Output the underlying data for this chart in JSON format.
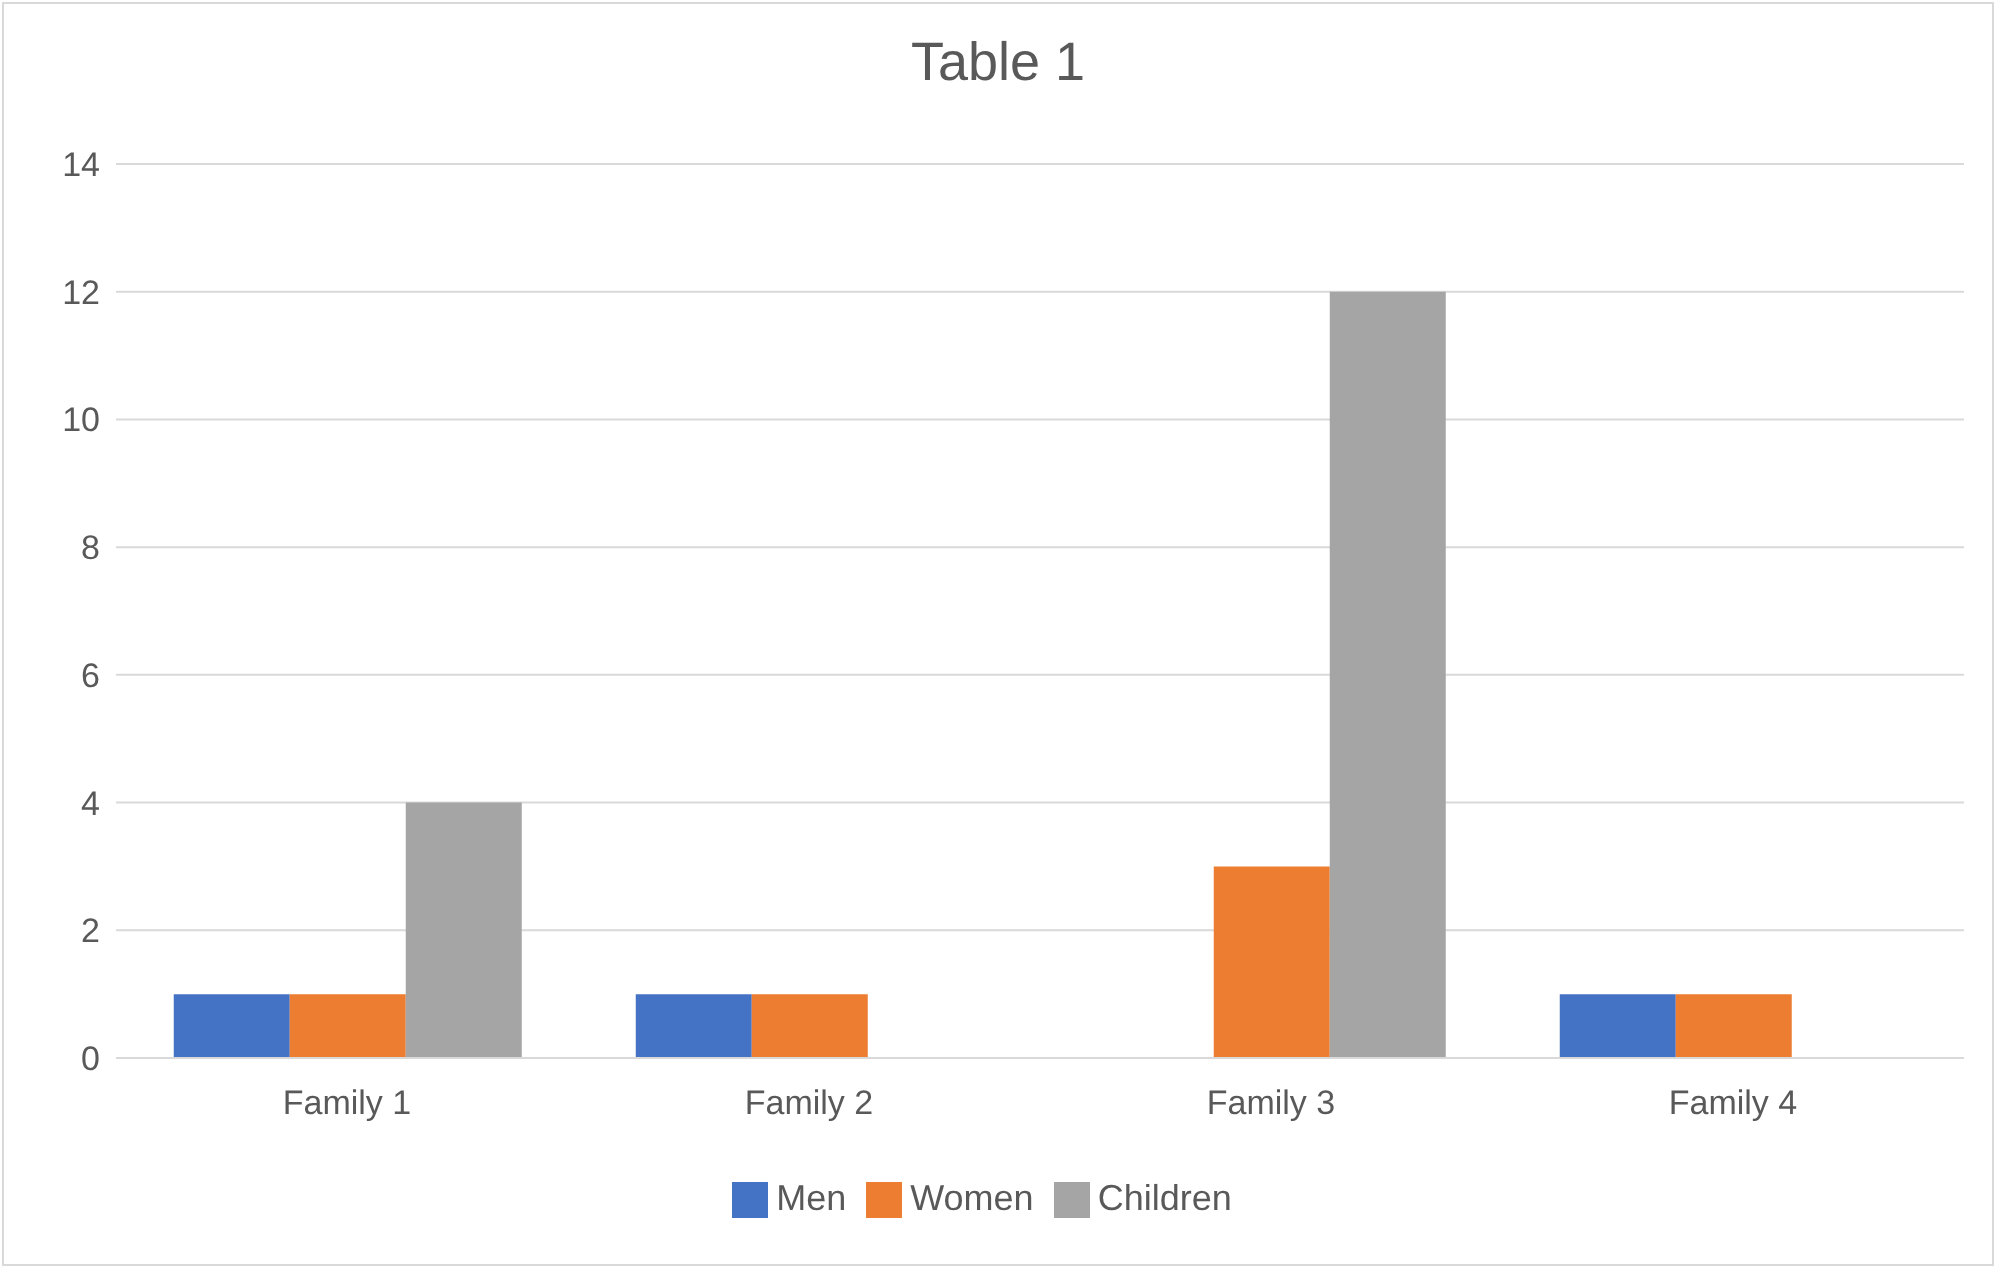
{
  "chart_data": {
    "type": "bar",
    "title": "Table 1",
    "categories": [
      "Family 1",
      "Family 2",
      "Family 3",
      "Family 4"
    ],
    "series": [
      {
        "name": "Men",
        "color": "#4472c4",
        "values": [
          1,
          1,
          0,
          1
        ]
      },
      {
        "name": "Women",
        "color": "#ed7d31",
        "values": [
          1,
          1,
          3,
          1
        ]
      },
      {
        "name": "Children",
        "color": "#a5a5a5",
        "values": [
          4,
          0,
          12,
          0
        ]
      }
    ],
    "ylim": [
      0,
      14
    ],
    "yticks": [
      0,
      2,
      4,
      6,
      8,
      10,
      12,
      14
    ],
    "grid": "y",
    "legend": "bottom"
  }
}
